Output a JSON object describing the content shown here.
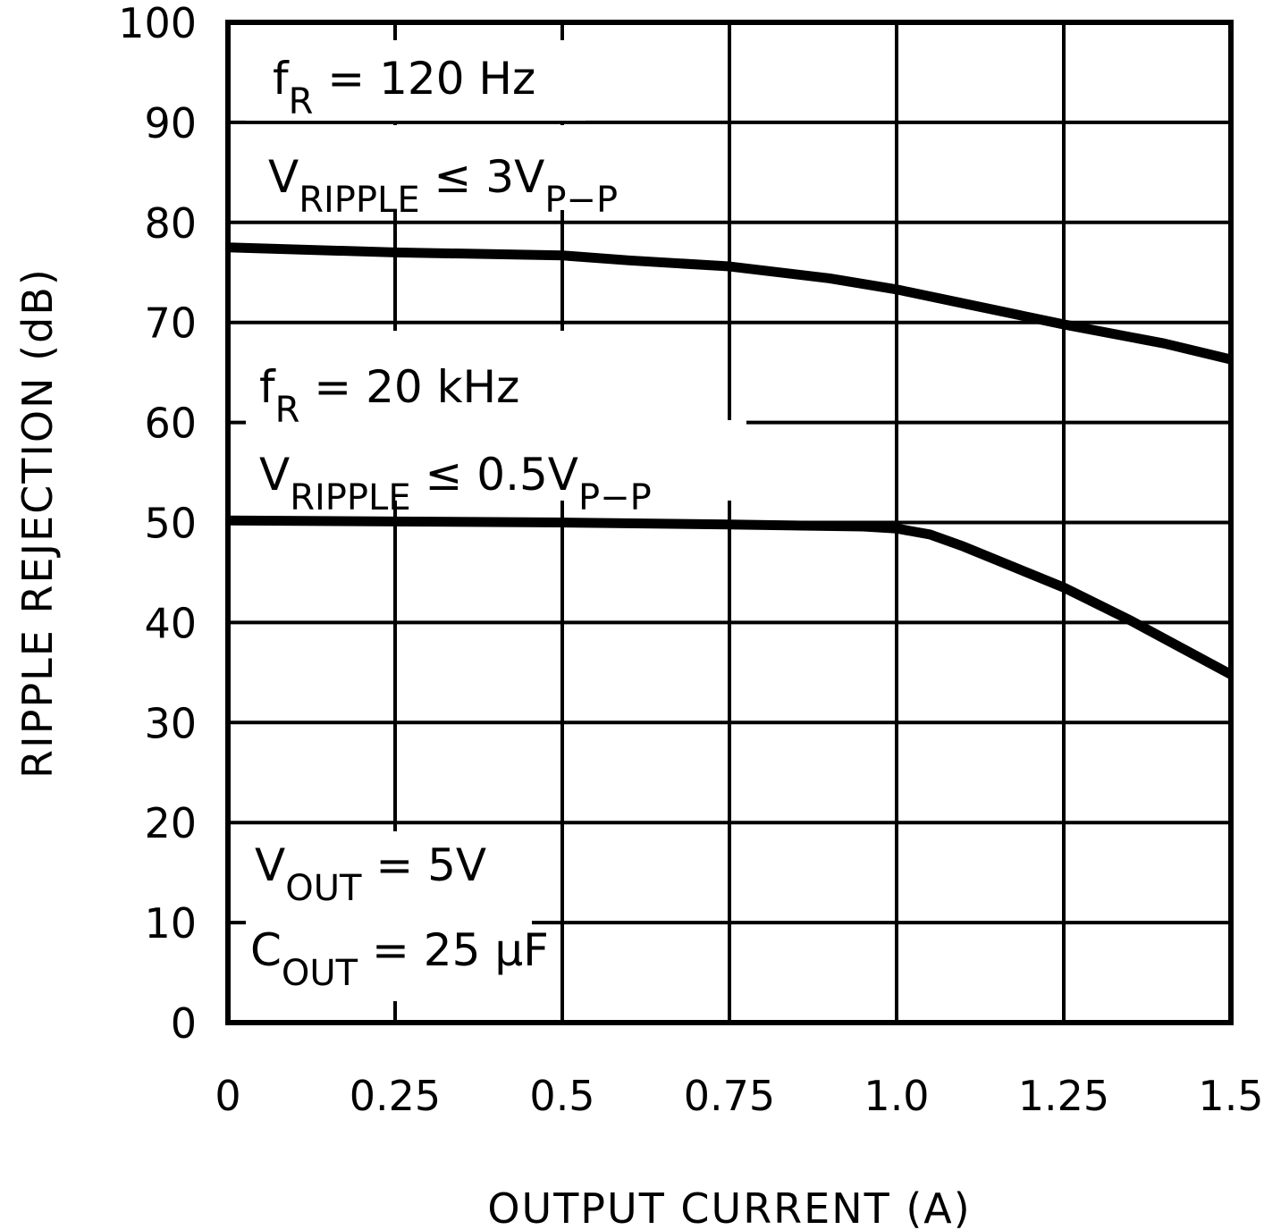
{
  "chart_data": {
    "type": "line",
    "title": "",
    "xlabel": "OUTPUT CURRENT (A)",
    "ylabel": "RIPPLE REJECTION (dB)",
    "xlim": [
      0,
      1.5
    ],
    "ylim": [
      0,
      100
    ],
    "grid": true,
    "x_tick_labels": [
      "0",
      "0.25",
      "0.5",
      "0.75",
      "1.0",
      "1.25",
      "1.5"
    ],
    "x_ticks": [
      0,
      0.25,
      0.5,
      0.75,
      1.0,
      1.25,
      1.5
    ],
    "y_tick_labels": [
      "0",
      "10",
      "20",
      "30",
      "40",
      "50",
      "60",
      "70",
      "80",
      "90",
      "100"
    ],
    "y_ticks": [
      0,
      10,
      20,
      30,
      40,
      50,
      60,
      70,
      80,
      90,
      100
    ],
    "series": [
      {
        "x": [
          0,
          0.25,
          0.5,
          0.6,
          0.75,
          0.9,
          1.0,
          1.1,
          1.25,
          1.4,
          1.5
        ],
        "y": [
          77.5,
          77.0,
          76.7,
          76.2,
          75.6,
          74.4,
          73.3,
          71.9,
          69.8,
          67.9,
          66.3
        ]
      },
      {
        "x": [
          0,
          0.25,
          0.5,
          0.75,
          0.95,
          1.0,
          1.05,
          1.1,
          1.25,
          1.35,
          1.5
        ],
        "y": [
          50.2,
          50.1,
          50.0,
          49.8,
          49.6,
          49.4,
          48.8,
          47.6,
          43.5,
          40.2,
          34.8
        ]
      }
    ],
    "annotations": [
      {
        "lines": [
          [
            {
              "t": "f"
            },
            {
              "t": "R",
              "sub": true
            },
            {
              "t": " = 120 Hz"
            }
          ],
          [
            {
              "t": "V"
            },
            {
              "t": "RIPPLE",
              "sub": true
            },
            {
              "t": " ≤ 3V"
            },
            {
              "t": "P−P",
              "sub": true
            }
          ]
        ]
      },
      {
        "lines": [
          [
            {
              "t": "f"
            },
            {
              "t": "R",
              "sub": true
            },
            {
              "t": " = 20 kHz"
            }
          ],
          [
            {
              "t": "V"
            },
            {
              "t": "RIPPLE",
              "sub": true
            },
            {
              "t": " ≤ 0.5V"
            },
            {
              "t": "P−P",
              "sub": true
            }
          ]
        ]
      },
      {
        "lines": [
          [
            {
              "t": "V"
            },
            {
              "t": "OUT",
              "sub": true
            },
            {
              "t": " = 5V"
            }
          ],
          [
            {
              "t": "C"
            },
            {
              "t": "OUT",
              "sub": true
            },
            {
              "t": " = 25 μF"
            }
          ]
        ]
      }
    ],
    "line_color": "#000000"
  }
}
